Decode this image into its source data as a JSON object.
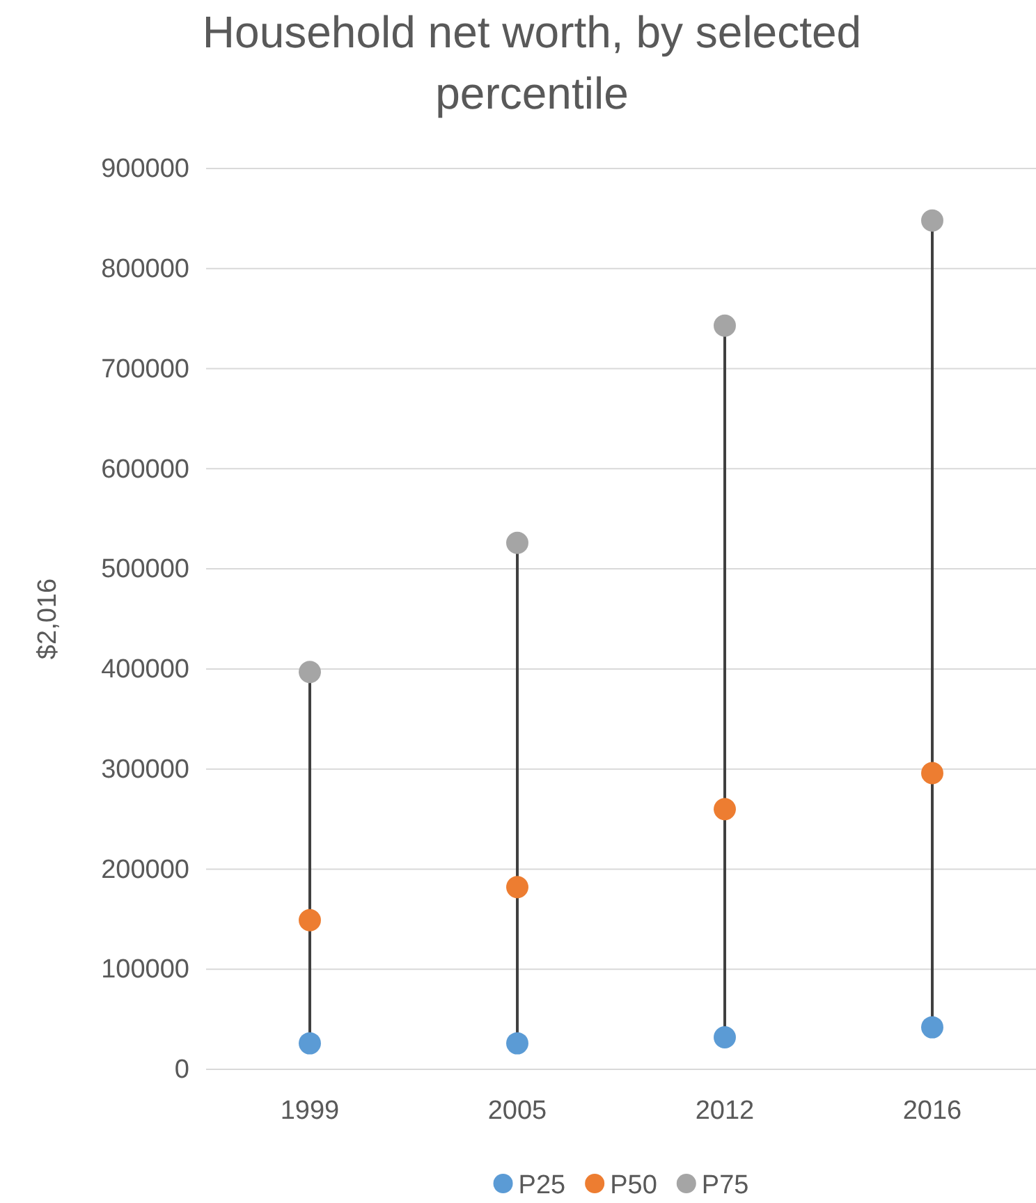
{
  "chart_data": {
    "type": "scatter",
    "title": "Household net worth, by selected percentile",
    "ylabel": "$2,016",
    "categories": [
      "1999",
      "2005",
      "2012",
      "2016"
    ],
    "series": [
      {
        "name": "P25",
        "color": "#5b9bd5",
        "values": [
          26000,
          26000,
          32000,
          42000
        ]
      },
      {
        "name": "P50",
        "color": "#ed7d31",
        "values": [
          149000,
          182000,
          260000,
          296000
        ]
      },
      {
        "name": "P75",
        "color": "#a5a5a5",
        "values": [
          397000,
          526000,
          743000,
          848000
        ]
      }
    ],
    "ylim": [
      0,
      900000
    ],
    "yticks": [
      0,
      100000,
      200000,
      300000,
      400000,
      500000,
      600000,
      700000,
      800000,
      900000
    ],
    "grid": "y",
    "legend": "bottom",
    "marker": "circle"
  }
}
